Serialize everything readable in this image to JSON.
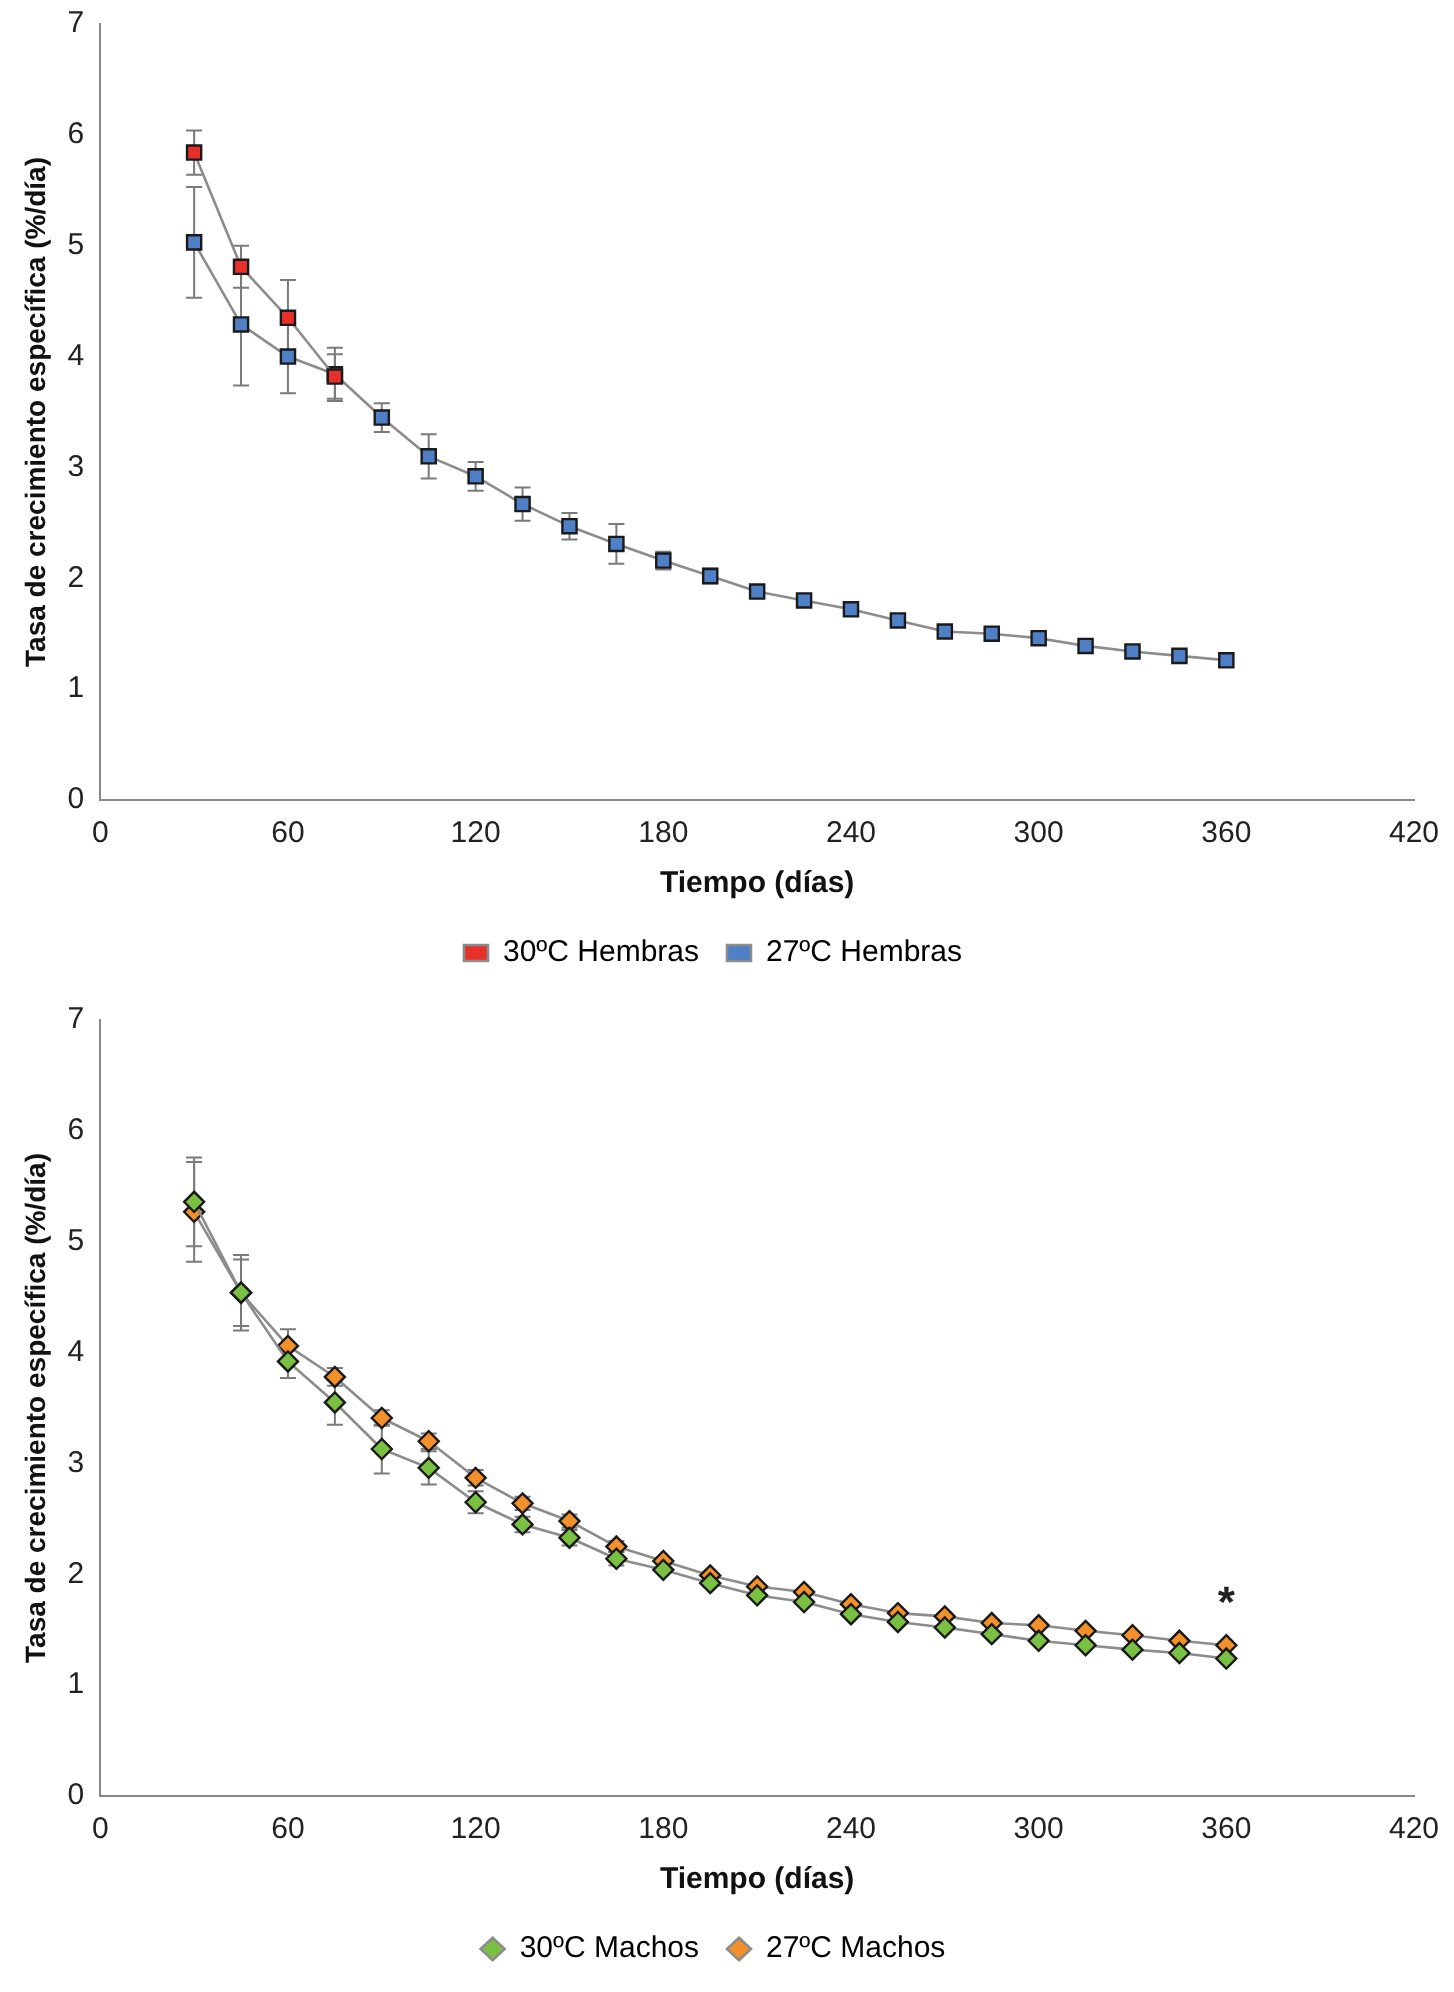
{
  "chart_data": [
    {
      "type": "line",
      "xlabel": "Tiempo (días)",
      "ylabel": "Tasa de crecimiento específica (%/día)",
      "x": [
        30,
        45,
        60,
        75,
        90,
        105,
        120,
        135,
        150,
        165,
        180,
        195,
        210,
        225,
        240,
        255,
        270,
        285,
        300,
        315,
        330,
        345,
        360
      ],
      "series": [
        {
          "name": "30ºC Hembras",
          "color": "#e8302a",
          "values": [
            5.84,
            4.81,
            4.35,
            3.82,
            null,
            null,
            null,
            null,
            null,
            null,
            null,
            null,
            null,
            null,
            null,
            null,
            null,
            null,
            null,
            null,
            null,
            null,
            null
          ],
          "errors": [
            0.2,
            0.19,
            0.34,
            0.2,
            null,
            null,
            null,
            null,
            null,
            null,
            null,
            null,
            null,
            null,
            null,
            null,
            null,
            null,
            null,
            null,
            null,
            null,
            null
          ]
        },
        {
          "name": "27ºC Hembras",
          "color": "#4f7fc4",
          "values": [
            5.03,
            4.29,
            4.0,
            3.84,
            3.45,
            3.1,
            2.92,
            2.67,
            2.47,
            2.31,
            2.16,
            2.02,
            1.88,
            1.8,
            1.72,
            1.62,
            1.52,
            1.5,
            1.46,
            1.39,
            1.34,
            1.3,
            1.26
          ],
          "errors": [
            0.5,
            0.55,
            0.33,
            0.24,
            0.13,
            0.2,
            0.13,
            0.15,
            0.12,
            0.18,
            0.08,
            0.07,
            null,
            null,
            null,
            null,
            null,
            null,
            null,
            null,
            null,
            null,
            null
          ]
        }
      ],
      "xlim": [
        0,
        420
      ],
      "xticks": [
        0,
        60,
        120,
        180,
        240,
        300,
        360,
        420
      ],
      "ylim": [
        0,
        7
      ],
      "yticks": [
        0,
        1,
        2,
        3,
        4,
        5,
        6,
        7
      ],
      "grid": false,
      "legend": "bottom",
      "marker": "square",
      "line_style": "solid"
    },
    {
      "type": "line",
      "xlabel": "Tiempo (días)",
      "ylabel": "Tasa de crecimiento específica (%/día)",
      "x": [
        30,
        45,
        60,
        75,
        90,
        105,
        120,
        135,
        150,
        165,
        180,
        195,
        210,
        225,
        240,
        255,
        270,
        285,
        300,
        315,
        330,
        345,
        360
      ],
      "series": [
        {
          "name": "30ºC Machos",
          "color": "#7ac143",
          "values": [
            5.36,
            4.54,
            3.92,
            3.55,
            3.13,
            2.96,
            2.65,
            2.45,
            2.33,
            2.14,
            2.04,
            1.92,
            1.81,
            1.75,
            1.64,
            1.57,
            1.52,
            1.46,
            1.4,
            1.36,
            1.32,
            1.29,
            1.24
          ],
          "errors": [
            0.4,
            0.3,
            0.15,
            0.2,
            0.22,
            0.15,
            0.1,
            0.07,
            0.07,
            0.06,
            null,
            null,
            null,
            null,
            null,
            null,
            null,
            null,
            null,
            null,
            null,
            null,
            null
          ]
        },
        {
          "name": "27ºC Machos",
          "color": "#f39029",
          "values": [
            5.27,
            4.54,
            4.06,
            3.78,
            3.41,
            3.2,
            2.87,
            2.64,
            2.48,
            2.25,
            2.12,
            1.99,
            1.89,
            1.84,
            1.73,
            1.65,
            1.62,
            1.56,
            1.54,
            1.49,
            1.45,
            1.4,
            1.36
          ],
          "errors": [
            0.45,
            0.34,
            0.15,
            0.08,
            0.07,
            0.07,
            0.07,
            0.06,
            0.06,
            0.05,
            null,
            null,
            null,
            null,
            null,
            null,
            null,
            null,
            null,
            null,
            null,
            null,
            null
          ]
        }
      ],
      "xlim": [
        0,
        420
      ],
      "xticks": [
        0,
        60,
        120,
        180,
        240,
        300,
        360,
        420
      ],
      "ylim": [
        0,
        7
      ],
      "yticks": [
        0,
        1,
        2,
        3,
        4,
        5,
        6,
        7
      ],
      "annotations": [
        "*"
      ],
      "grid": false,
      "legend": "bottom",
      "marker": "diamond",
      "line_style": "solid"
    }
  ]
}
